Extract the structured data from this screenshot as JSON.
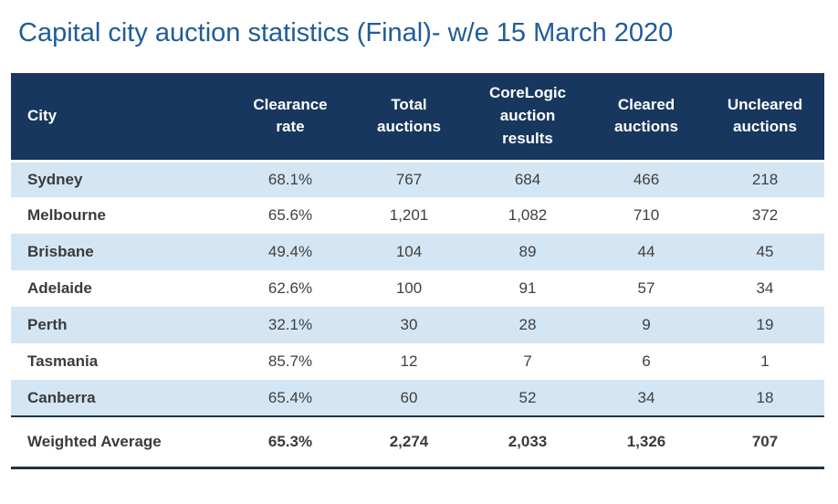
{
  "title": "Capital city auction statistics (Final)- w/e 15 March 2020",
  "colors": {
    "header_bg": "#17375E",
    "row_alt_bg": "#D4E6F4",
    "title_text": "#1F5C99",
    "body_text": "#404040",
    "header_text": "#FFFFFF",
    "border_dark": "#1E3348"
  },
  "table": {
    "columns": [
      "City",
      "Clearance rate",
      "Total auctions",
      "CoreLogic auction results",
      "Cleared auctions",
      "Uncleared auctions"
    ],
    "rows": [
      {
        "city": "Sydney",
        "clearance_rate": "68.1%",
        "total_auctions": "767",
        "corelogic_auction_results": "684",
        "cleared_auctions": "466",
        "uncleared_auctions": "218"
      },
      {
        "city": "Melbourne",
        "clearance_rate": "65.6%",
        "total_auctions": "1,201",
        "corelogic_auction_results": "1,082",
        "cleared_auctions": "710",
        "uncleared_auctions": "372"
      },
      {
        "city": "Brisbane",
        "clearance_rate": "49.4%",
        "total_auctions": "104",
        "corelogic_auction_results": "89",
        "cleared_auctions": "44",
        "uncleared_auctions": "45"
      },
      {
        "city": "Adelaide",
        "clearance_rate": "62.6%",
        "total_auctions": "100",
        "corelogic_auction_results": "91",
        "cleared_auctions": "57",
        "uncleared_auctions": "34"
      },
      {
        "city": "Perth",
        "clearance_rate": "32.1%",
        "total_auctions": "30",
        "corelogic_auction_results": "28",
        "cleared_auctions": "9",
        "uncleared_auctions": "19"
      },
      {
        "city": "Tasmania",
        "clearance_rate": "85.7%",
        "total_auctions": "12",
        "corelogic_auction_results": "7",
        "cleared_auctions": "6",
        "uncleared_auctions": "1"
      },
      {
        "city": "Canberra",
        "clearance_rate": "65.4%",
        "total_auctions": "60",
        "corelogic_auction_results": "52",
        "cleared_auctions": "34",
        "uncleared_auctions": "18"
      }
    ],
    "footer": {
      "city": "Weighted Average",
      "clearance_rate": "65.3%",
      "total_auctions": "2,274",
      "corelogic_auction_results": "2,033",
      "cleared_auctions": "1,326",
      "uncleared_auctions": "707"
    }
  },
  "chart_data": {
    "type": "table",
    "title": "Capital city auction statistics (Final)- w/e 15 March 2020",
    "columns": [
      "City",
      "Clearance rate",
      "Total auctions",
      "CoreLogic auction results",
      "Cleared auctions",
      "Uncleared auctions"
    ],
    "rows": [
      [
        "Sydney",
        "68.1%",
        767,
        684,
        466,
        218
      ],
      [
        "Melbourne",
        "65.6%",
        1201,
        1082,
        710,
        372
      ],
      [
        "Brisbane",
        "49.4%",
        104,
        89,
        44,
        45
      ],
      [
        "Adelaide",
        "62.6%",
        100,
        91,
        57,
        34
      ],
      [
        "Perth",
        "32.1%",
        30,
        28,
        9,
        19
      ],
      [
        "Tasmania",
        "85.7%",
        12,
        7,
        6,
        1
      ],
      [
        "Canberra",
        "65.4%",
        60,
        52,
        34,
        18
      ],
      [
        "Weighted Average",
        "65.3%",
        2274,
        2033,
        1326,
        707
      ]
    ]
  }
}
